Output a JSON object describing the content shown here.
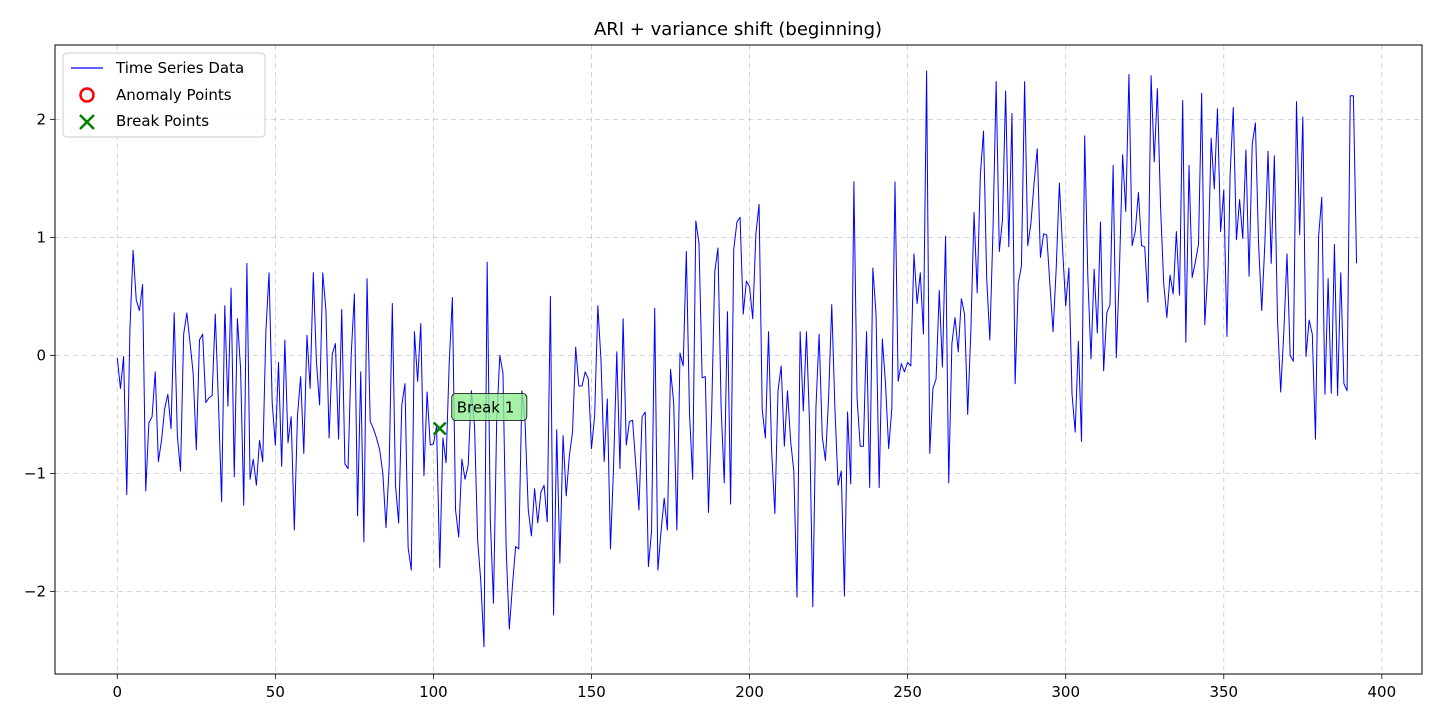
{
  "chart_data": {
    "type": "line",
    "title": "ARI + variance shift (beginning)",
    "xlabel": "",
    "ylabel": "",
    "xlim": [
      -19.7,
      412.7
    ],
    "ylim": [
      -2.7,
      2.63
    ],
    "xticks": [
      0,
      50,
      100,
      150,
      200,
      250,
      300,
      350,
      400
    ],
    "yticks": [
      -2,
      -1,
      0,
      1,
      2
    ],
    "grid": true,
    "legend_position": "top-left",
    "series": [
      {
        "name": "Time Series Data",
        "color": "#0000ff",
        "x_start": 0,
        "values": [
          -0.02,
          -0.28,
          -0.01,
          -1.18,
          0.22,
          0.89,
          0.47,
          0.38,
          0.6,
          -1.15,
          -0.57,
          -0.52,
          -0.14,
          -0.9,
          -0.72,
          -0.45,
          -0.33,
          -0.62,
          0.36,
          -0.68,
          -0.98,
          0.18,
          0.36,
          0.11,
          -0.15,
          -0.8,
          0.13,
          0.18,
          -0.4,
          -0.36,
          -0.34,
          0.35,
          -0.4,
          -1.24,
          0.42,
          -0.43,
          0.57,
          -1.03,
          0.31,
          -0.11,
          -1.27,
          0.78,
          -1.05,
          -0.88,
          -1.1,
          -0.72,
          -0.9,
          0.2,
          0.7,
          -0.4,
          -0.76,
          -0.06,
          -0.94,
          0.13,
          -0.74,
          -0.52,
          -1.48,
          -0.51,
          -0.18,
          -0.83,
          0.17,
          -0.28,
          0.7,
          -0.06,
          -0.42,
          0.7,
          0.38,
          -0.7,
          0.01,
          0.1,
          -0.71,
          0.39,
          -0.92,
          -0.96,
          0.01,
          0.52,
          -1.36,
          -0.14,
          -1.58,
          0.65,
          -0.56,
          -0.62,
          -0.7,
          -0.8,
          -1.0,
          -1.46,
          -0.94,
          0.44,
          -1.1,
          -1.42,
          -0.42,
          -0.24,
          -1.63,
          -1.82,
          0.2,
          -0.22,
          0.27,
          -1.02,
          -0.31,
          -0.76,
          -0.75,
          -0.6,
          -1.8,
          -0.7,
          -0.91,
          -0.06,
          0.49,
          -1.31,
          -1.54,
          -0.88,
          -1.05,
          -0.93,
          -0.3,
          -0.6,
          -1.57,
          -1.92,
          -2.47,
          0.79,
          -1.4,
          -2.1,
          -0.57,
          0.0,
          -0.15,
          -1.63,
          -2.32,
          -1.95,
          -1.62,
          -1.64,
          -0.3,
          -0.57,
          -1.31,
          -1.53,
          -1.13,
          -1.42,
          -1.16,
          -1.1,
          -1.41,
          0.5,
          -2.2,
          -0.63,
          -1.76,
          -0.68,
          -1.19,
          -0.85,
          -0.65,
          0.07,
          -0.26,
          -0.26,
          -0.14,
          -0.2,
          -0.79,
          -0.51,
          0.42,
          -0.04,
          -0.9,
          -0.37,
          -1.64,
          -0.93,
          0.03,
          -0.96,
          0.31,
          -0.76,
          -0.56,
          -0.55,
          -0.92,
          -1.31,
          -0.52,
          -0.48,
          -1.79,
          -1.49,
          0.4,
          -1.82,
          -1.49,
          -1.21,
          -1.48,
          -0.12,
          -0.4,
          -1.48,
          0.02,
          -0.09,
          0.88,
          -0.49,
          -1.05,
          1.14,
          0.95,
          -0.19,
          -0.18,
          -1.33,
          -0.49,
          0.71,
          0.91,
          -0.44,
          -1.08,
          0.37,
          -1.26,
          0.9,
          1.13,
          1.17,
          0.35,
          0.63,
          0.58,
          0.31,
          1.03,
          1.28,
          -0.46,
          -0.7,
          0.2,
          -0.82,
          -1.34,
          -0.3,
          -0.09,
          -0.77,
          -0.3,
          -0.73,
          -0.98,
          -2.05,
          0.2,
          -0.47,
          0.2,
          -0.6,
          -2.13,
          -0.44,
          0.18,
          -0.69,
          -0.89,
          -0.36,
          0.43,
          -0.45,
          -1.1,
          -0.98,
          -2.04,
          -0.48,
          -1.09,
          1.47,
          -0.36,
          -0.77,
          -0.77,
          0.2,
          -1.12,
          0.74,
          0.35,
          -1.12,
          0.14,
          -0.24,
          -0.79,
          -0.45,
          1.47,
          -0.22,
          -0.07,
          -0.14,
          -0.06,
          -0.09,
          0.86,
          0.44,
          0.7,
          0.18,
          2.41,
          -0.83,
          -0.28,
          -0.2,
          0.55,
          -0.1,
          1.01,
          -1.08,
          0.1,
          0.32,
          0.03,
          0.48,
          0.35,
          -0.5,
          0.21,
          1.21,
          0.53,
          1.53,
          1.9,
          0.66,
          0.13,
          1.06,
          2.32,
          0.88,
          1.15,
          2.24,
          0.92,
          2.05,
          -0.24,
          0.61,
          0.76,
          2.32,
          0.93,
          1.12,
          1.46,
          1.75,
          0.83,
          1.03,
          1.02,
          0.6,
          0.2,
          0.74,
          1.46,
          0.91,
          0.42,
          0.74,
          -0.33,
          -0.65,
          0.12,
          -0.73,
          1.86,
          0.66,
          -0.03,
          0.73,
          0.19,
          1.13,
          -0.13,
          0.36,
          0.43,
          1.61,
          -0.02,
          0.73,
          1.7,
          1.22,
          2.38,
          0.93,
          1.05,
          1.38,
          0.93,
          0.92,
          0.45,
          2.37,
          1.64,
          2.26,
          1.26,
          0.61,
          0.32,
          0.68,
          0.52,
          1.05,
          0.51,
          2.16,
          0.11,
          1.61,
          0.66,
          0.79,
          0.94,
          2.22,
          0.26,
          0.74,
          1.84,
          1.41,
          2.09,
          1.05,
          1.4,
          0.16,
          1.53,
          2.1,
          0.98,
          1.32,
          0.99,
          1.74,
          0.67,
          1.79,
          1.97,
          0.95,
          0.38,
          0.95,
          1.73,
          0.78,
          1.69,
          0.3,
          -0.31,
          0.2,
          0.86,
          0.0,
          -0.05,
          2.15,
          1.02,
          2.02,
          -0.01,
          0.3,
          0.18,
          -0.71,
          1.01,
          1.34,
          -0.33,
          0.65,
          -0.32,
          0.94,
          -0.34,
          0.7,
          -0.24,
          -0.3,
          2.2,
          2.2,
          0.78
        ]
      }
    ],
    "anomaly_points": {
      "name": "Anomaly Points",
      "color": "#ff0000",
      "points": []
    },
    "break_points": {
      "name": "Break Points",
      "color": "#008000",
      "points": [
        {
          "x": 102,
          "y": -0.62,
          "label": "Break 1"
        }
      ]
    },
    "annotation_bg": "#90ee90"
  }
}
